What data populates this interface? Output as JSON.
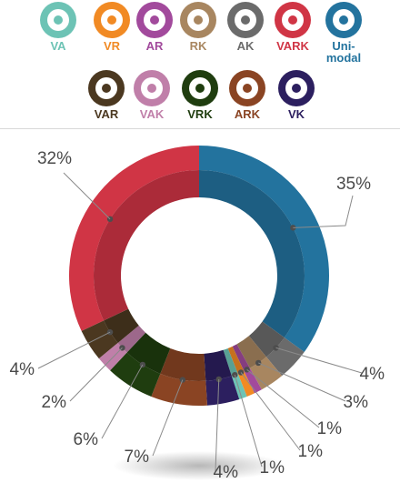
{
  "legend": [
    {
      "label": "VA",
      "color": "#6dc3b5"
    },
    {
      "label": "VR",
      "color": "#f18a24"
    },
    {
      "label": "AR",
      "color": "#a24a9c"
    },
    {
      "label": "RK",
      "color": "#a88660"
    },
    {
      "label": "AK",
      "color": "#6b6b6b"
    },
    {
      "label": "VARK",
      "color": "#d03545"
    },
    {
      "label": "Uni-\nmodal",
      "color": "#23739e"
    },
    {
      "label": "VAR",
      "color": "#4b3820"
    },
    {
      "label": "VAK",
      "color": "#c07fa9"
    },
    {
      "label": "VRK",
      "color": "#1f3d0f"
    },
    {
      "label": "ARK",
      "color": "#8a4423"
    },
    {
      "label": "VK",
      "color": "#2c1f5f"
    }
  ],
  "chart_data": {
    "type": "pie",
    "donut": true,
    "slices": [
      {
        "label": "Uni-modal",
        "value": 35,
        "data_label": "35%",
        "color": "#23739e"
      },
      {
        "label": "AK",
        "value": 4,
        "data_label": "4%",
        "color": "#6b6b6b"
      },
      {
        "label": "RK",
        "value": 3,
        "data_label": "3%",
        "color": "#a88660"
      },
      {
        "label": "AR",
        "value": 1,
        "data_label": "1%",
        "color": "#a24a9c"
      },
      {
        "label": "VR",
        "value": 1,
        "data_label": "1%",
        "color": "#f18a24"
      },
      {
        "label": "VA",
        "value": 1,
        "data_label": "1%",
        "color": "#6dc3b5"
      },
      {
        "label": "VK",
        "value": 4,
        "data_label": "4%",
        "color": "#2c1f5f"
      },
      {
        "label": "ARK",
        "value": 7,
        "data_label": "7%",
        "color": "#8a4423"
      },
      {
        "label": "VRK",
        "value": 6,
        "data_label": "6%",
        "color": "#1f3d0f"
      },
      {
        "label": "VAK",
        "value": 2,
        "data_label": "2%",
        "color": "#c07fa9"
      },
      {
        "label": "VAR",
        "value": 4,
        "data_label": "4%",
        "color": "#4b3820"
      },
      {
        "label": "VARK",
        "value": 32,
        "data_label": "32%",
        "color": "#d03545"
      }
    ]
  }
}
